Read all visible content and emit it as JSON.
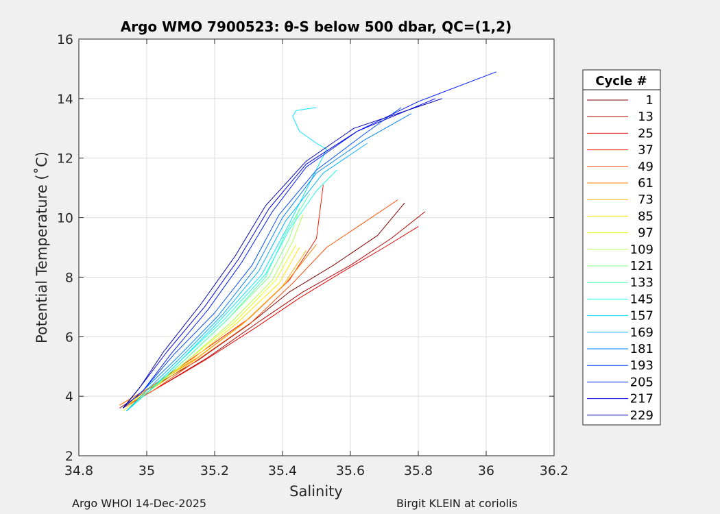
{
  "chart_data": {
    "type": "line",
    "title": "Argo WMO 7900523: θ-S below 500 dbar,  QC=(1,2)",
    "xlabel": "Salinity",
    "ylabel": "Potential Temperature (˚C)",
    "xlim": [
      34.8,
      36.2
    ],
    "ylim": [
      2,
      16
    ],
    "xticks": [
      34.8,
      35.0,
      35.2,
      35.4,
      35.6,
      35.8,
      36.0,
      36.2
    ],
    "xtick_labels": [
      "34.8",
      "35",
      "35.2",
      "35.4",
      "35.6",
      "35.8",
      "36",
      "36.2"
    ],
    "yticks": [
      2,
      4,
      6,
      8,
      10,
      12,
      14,
      16
    ],
    "ytick_labels": [
      "2",
      "4",
      "6",
      "8",
      "10",
      "12",
      "14",
      "16"
    ],
    "grid": true,
    "legend": {
      "title": "Cycle #",
      "placement": "outside-right",
      "entries": [
        {
          "label": "1",
          "color": "#800000"
        },
        {
          "label": "13",
          "color": "#b30000"
        },
        {
          "label": "25",
          "color": "#e60000"
        },
        {
          "label": "37",
          "color": "#ff1a00"
        },
        {
          "label": "49",
          "color": "#ff4d00"
        },
        {
          "label": "61",
          "color": "#ff8000"
        },
        {
          "label": "73",
          "color": "#ffb300"
        },
        {
          "label": "85",
          "color": "#ffe600"
        },
        {
          "label": "97",
          "color": "#e6ff1a"
        },
        {
          "label": "109",
          "color": "#b3ff4d"
        },
        {
          "label": "121",
          "color": "#80ff80"
        },
        {
          "label": "133",
          "color": "#4dffb3"
        },
        {
          "label": "145",
          "color": "#1affe6"
        },
        {
          "label": "157",
          "color": "#00e6ff"
        },
        {
          "label": "169",
          "color": "#00b3ff"
        },
        {
          "label": "181",
          "color": "#0080ff"
        },
        {
          "label": "193",
          "color": "#004dff"
        },
        {
          "label": "205",
          "color": "#001aff"
        },
        {
          "label": "217",
          "color": "#0000e6"
        },
        {
          "label": "229",
          "color": "#0000b3"
        }
      ]
    },
    "series": [
      {
        "name": "1",
        "color": "#800000",
        "x": [
          34.92,
          35.0,
          35.15,
          35.3,
          35.42,
          35.55,
          35.68,
          35.76
        ],
        "y": [
          3.6,
          4.2,
          5.2,
          6.4,
          7.5,
          8.4,
          9.4,
          10.5
        ]
      },
      {
        "name": "13",
        "color": "#b30000",
        "x": [
          34.93,
          35.02,
          35.18,
          35.33,
          35.46,
          35.6,
          35.72,
          35.82
        ],
        "y": [
          3.6,
          4.2,
          5.3,
          6.5,
          7.5,
          8.4,
          9.3,
          10.2
        ]
      },
      {
        "name": "25",
        "color": "#e60000",
        "x": [
          34.93,
          35.02,
          35.17,
          35.32,
          35.45,
          35.58,
          35.7,
          35.8
        ],
        "y": [
          3.6,
          4.2,
          5.2,
          6.3,
          7.3,
          8.2,
          9.0,
          9.7
        ]
      },
      {
        "name": "37",
        "color": "#ff1a00",
        "x": [
          34.92,
          35.01,
          35.15,
          35.3,
          35.42,
          35.5,
          35.52
        ],
        "y": [
          3.7,
          4.3,
          5.4,
          6.6,
          7.9,
          9.3,
          11.1
        ]
      },
      {
        "name": "49",
        "color": "#ff4d00",
        "x": [
          34.93,
          35.02,
          35.16,
          35.31,
          35.43,
          35.53,
          35.74
        ],
        "y": [
          3.6,
          4.2,
          5.3,
          6.5,
          7.8,
          9.0,
          10.6
        ]
      },
      {
        "name": "61",
        "color": "#ff8000",
        "x": [
          34.92,
          35.01,
          35.15,
          35.29,
          35.41,
          35.5
        ],
        "y": [
          3.7,
          4.3,
          5.3,
          6.5,
          7.8,
          9.1
        ]
      },
      {
        "name": "73",
        "color": "#ffb300",
        "x": [
          34.93,
          35.01,
          35.14,
          35.28,
          35.4,
          35.47
        ],
        "y": [
          3.6,
          4.2,
          5.2,
          6.4,
          7.7,
          8.9
        ]
      },
      {
        "name": "85",
        "color": "#ffe600",
        "x": [
          34.93,
          35.0,
          35.13,
          35.27,
          35.39,
          35.45
        ],
        "y": [
          3.6,
          4.2,
          5.2,
          6.5,
          7.8,
          9.0
        ]
      },
      {
        "name": "97",
        "color": "#e6ff1a",
        "x": [
          34.93,
          35.0,
          35.12,
          35.26,
          35.38,
          35.44
        ],
        "y": [
          3.5,
          4.1,
          5.2,
          6.5,
          7.9,
          9.1
        ]
      },
      {
        "name": "109",
        "color": "#b3ff4d",
        "x": [
          34.94,
          35.0,
          35.12,
          35.25,
          35.37,
          35.43,
          35.46
        ],
        "y": [
          3.5,
          4.1,
          5.2,
          6.5,
          7.9,
          9.2,
          10.1
        ]
      },
      {
        "name": "121",
        "color": "#80ff80",
        "x": [
          34.94,
          35.0,
          35.11,
          35.24,
          35.36,
          35.42,
          35.45
        ],
        "y": [
          3.5,
          4.1,
          5.2,
          6.6,
          8.0,
          9.3,
          10.3
        ]
      },
      {
        "name": "133",
        "color": "#4dffb3",
        "x": [
          34.94,
          35.0,
          35.11,
          35.24,
          35.35,
          35.41,
          35.48
        ],
        "y": [
          3.5,
          4.1,
          5.2,
          6.6,
          8.0,
          9.5,
          10.8
        ]
      },
      {
        "name": "145",
        "color": "#1affe6",
        "x": [
          34.94,
          35.0,
          35.1,
          35.23,
          35.35,
          35.42,
          35.5,
          35.56
        ],
        "y": [
          3.5,
          4.1,
          5.2,
          6.6,
          8.1,
          9.6,
          10.9,
          11.6
        ]
      },
      {
        "name": "157",
        "color": "#00e6ff",
        "x": [
          34.94,
          35.0,
          35.1,
          35.22,
          35.34,
          35.42,
          35.53,
          35.5,
          35.45,
          35.43,
          35.44,
          35.5
        ],
        "y": [
          3.5,
          4.1,
          5.2,
          6.6,
          8.1,
          9.8,
          12.3,
          12.5,
          12.9,
          13.4,
          13.6,
          13.7
        ]
      },
      {
        "name": "169",
        "color": "#00b3ff",
        "x": [
          34.94,
          35.0,
          35.1,
          35.22,
          35.33,
          35.41,
          35.52,
          35.65
        ],
        "y": [
          3.5,
          4.2,
          5.3,
          6.7,
          8.2,
          9.9,
          11.5,
          12.5
        ]
      },
      {
        "name": "181",
        "color": "#0080ff",
        "x": [
          34.93,
          34.99,
          35.09,
          35.21,
          35.32,
          35.4,
          35.5,
          35.64,
          35.78
        ],
        "y": [
          3.6,
          4.2,
          5.3,
          6.7,
          8.3,
          10.0,
          11.5,
          12.6,
          13.5
        ]
      },
      {
        "name": "193",
        "color": "#004dff",
        "x": [
          34.93,
          34.99,
          35.08,
          35.2,
          35.31,
          35.39,
          35.5,
          35.64,
          35.75
        ],
        "y": [
          3.6,
          4.2,
          5.4,
          6.8,
          8.4,
          10.1,
          11.6,
          12.8,
          13.7
        ]
      },
      {
        "name": "205",
        "color": "#001aff",
        "x": [
          34.93,
          34.99,
          35.07,
          35.18,
          35.28,
          35.37,
          35.47,
          35.62,
          35.8,
          36.03
        ],
        "y": [
          3.6,
          4.2,
          5.4,
          6.9,
          8.5,
          10.2,
          11.7,
          12.9,
          13.9,
          14.9
        ]
      },
      {
        "name": "217",
        "color": "#0000e6",
        "x": [
          34.93,
          34.98,
          35.06,
          35.17,
          35.27,
          35.36,
          35.47,
          35.62,
          35.85
        ],
        "y": [
          3.6,
          4.3,
          5.5,
          7.0,
          8.6,
          10.3,
          11.8,
          12.9,
          14.0
        ]
      },
      {
        "name": "229",
        "color": "#0000b3",
        "x": [
          34.93,
          34.98,
          35.05,
          35.16,
          35.26,
          35.35,
          35.47,
          35.61,
          35.87
        ],
        "y": [
          3.6,
          4.3,
          5.5,
          7.1,
          8.7,
          10.4,
          11.9,
          13.0,
          14.0
        ]
      }
    ]
  },
  "footer": {
    "left": "Argo WHOI 14-Dec-2025",
    "right": "Birgit KLEIN at coriolis"
  }
}
